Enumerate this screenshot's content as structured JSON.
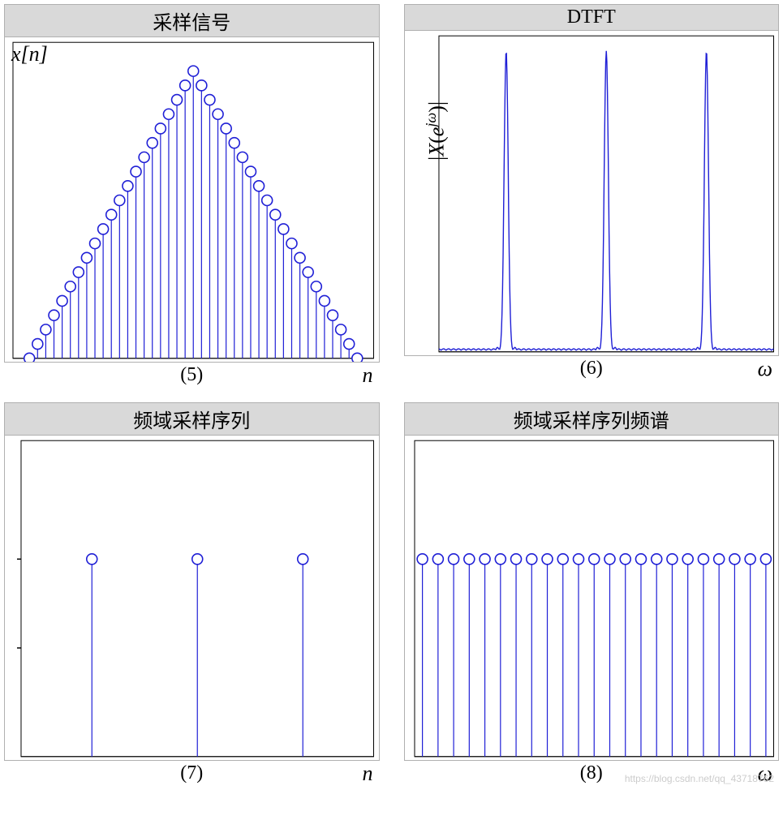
{
  "layout": {
    "cols": 2,
    "rows": 2,
    "gap_x": 30,
    "gap_y": 20,
    "page_bg": "#ffffff"
  },
  "colors": {
    "stroke": "#1f1fd6",
    "fill": "#ffffff",
    "axis": "#000000",
    "title_bg": "#d9d9d9",
    "panel_border": "#b0b0b0"
  },
  "marker": {
    "shape": "circle",
    "radius": 6.5,
    "stroke_width": 1.6,
    "stem_width": 1.2
  },
  "panels": {
    "p5": {
      "type": "stem",
      "title": "采样信号",
      "sub": "(5)",
      "xlabel": "n",
      "ylabel_tex": "x[n]",
      "ylabel_pos": "top-left-inside",
      "xlim": [
        -22,
        22
      ],
      "ylim": [
        0,
        22
      ],
      "x": [
        -20,
        -19,
        -18,
        -17,
        -16,
        -15,
        -14,
        -13,
        -12,
        -11,
        -10,
        -9,
        -8,
        -7,
        -6,
        -5,
        -4,
        -3,
        -2,
        -1,
        0,
        1,
        2,
        3,
        4,
        5,
        6,
        7,
        8,
        9,
        10,
        11,
        12,
        13,
        14,
        15,
        16,
        17,
        18,
        19,
        20
      ],
      "y": [
        0,
        1,
        2,
        3,
        4,
        5,
        6,
        7,
        8,
        9,
        10,
        11,
        12,
        13,
        14,
        15,
        16,
        17,
        18,
        19,
        20,
        19,
        18,
        17,
        16,
        15,
        14,
        13,
        12,
        11,
        10,
        9,
        8,
        7,
        6,
        5,
        4,
        3,
        2,
        1,
        0
      ]
    },
    "p6": {
      "type": "line",
      "title": "DTFT",
      "sub": "(6)",
      "xlabel": "ω",
      "ylabel_tex": "|X(e^{jω})|",
      "ylabel_pos": "rotated-left",
      "xlim": [
        -3.5,
        3.5
      ],
      "ylim": [
        0,
        1.05
      ],
      "peaks_x": [
        -2.094,
        0,
        2.094
      ],
      "peak_half_width": 0.09,
      "sidelobe_height": 0.04,
      "baseline_noise": 0.01,
      "n_points": 600
    },
    "p7": {
      "type": "stem",
      "title": "频域采样序列",
      "sub": "(7)",
      "xlabel": "n",
      "xlim": [
        -3.5,
        3.5
      ],
      "ylim": [
        0,
        1.6
      ],
      "x": [
        -2.094,
        0,
        2.094
      ],
      "y": [
        1,
        1,
        1
      ],
      "ytick_marks": [
        0.55,
        1.0
      ]
    },
    "p8": {
      "type": "stem",
      "title": "频域采样序列频谱",
      "sub": "(8)",
      "xlabel": "ω",
      "xlim": [
        -11.5,
        11.5
      ],
      "ylim": [
        0,
        1.6
      ],
      "x": [
        -11,
        -10,
        -9,
        -8,
        -7,
        -6,
        -5,
        -4,
        -3,
        -2,
        -1,
        0,
        1,
        2,
        3,
        4,
        5,
        6,
        7,
        8,
        9,
        10,
        11
      ],
      "y": [
        1,
        1,
        1,
        1,
        1,
        1,
        1,
        1,
        1,
        1,
        1,
        1,
        1,
        1,
        1,
        1,
        1,
        1,
        1,
        1,
        1,
        1,
        1
      ]
    }
  },
  "watermark": "https://blog.csdn.net/qq_43718762"
}
